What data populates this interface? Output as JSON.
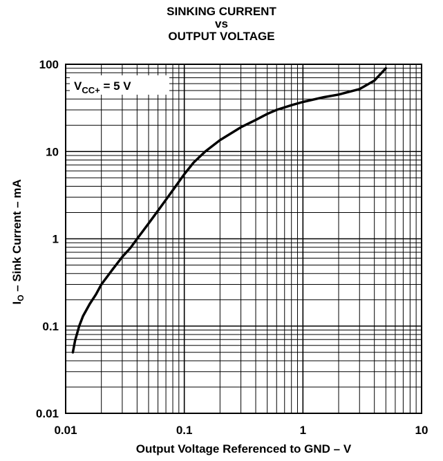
{
  "chart_data": {
    "type": "line",
    "title_lines": [
      "SINKING CURRENT",
      "vs",
      "OUTPUT VOLTAGE"
    ],
    "ylabel": {
      "main": "I",
      "sub": "O",
      "rest": " – Sink Current – mA"
    },
    "xlabel": "Output Voltage Referenced to GND – V",
    "x_scale": "log",
    "y_scale": "log",
    "xlim": [
      0.01,
      10
    ],
    "ylim": [
      0.01,
      100
    ],
    "x_ticks": [
      {
        "value": 0.01,
        "label": "0.01"
      },
      {
        "value": 0.1,
        "label": "0.1"
      },
      {
        "value": 1,
        "label": "1"
      },
      {
        "value": 10,
        "label": "10"
      }
    ],
    "y_ticks": [
      {
        "value": 100,
        "label": "100"
      },
      {
        "value": 10,
        "label": "10"
      },
      {
        "value": 1,
        "label": "1"
      },
      {
        "value": 0.1,
        "label": "0.1"
      },
      {
        "value": 0.01,
        "label": "0.01"
      }
    ],
    "grid": true,
    "annotation": {
      "main": "V",
      "sub": "CC+",
      "rest": " = 5 V"
    },
    "line_color": "#000000",
    "series": [
      {
        "x": [
          0.0115,
          0.012,
          0.013,
          0.014,
          0.016,
          0.018,
          0.02,
          0.025,
          0.03,
          0.035,
          0.04,
          0.05,
          0.06,
          0.07,
          0.08,
          0.09,
          0.1,
          0.12,
          0.15,
          0.2,
          0.3,
          0.4,
          0.5,
          0.6,
          0.8,
          1,
          1.5,
          2,
          3,
          4,
          5
        ],
        "y": [
          0.05,
          0.068,
          0.1,
          0.13,
          0.18,
          0.23,
          0.3,
          0.45,
          0.62,
          0.78,
          1.0,
          1.5,
          2.1,
          2.8,
          3.6,
          4.5,
          5.5,
          7.5,
          10,
          13.5,
          19,
          23,
          27,
          30,
          34,
          37,
          42,
          45,
          52,
          65,
          90
        ]
      }
    ]
  }
}
